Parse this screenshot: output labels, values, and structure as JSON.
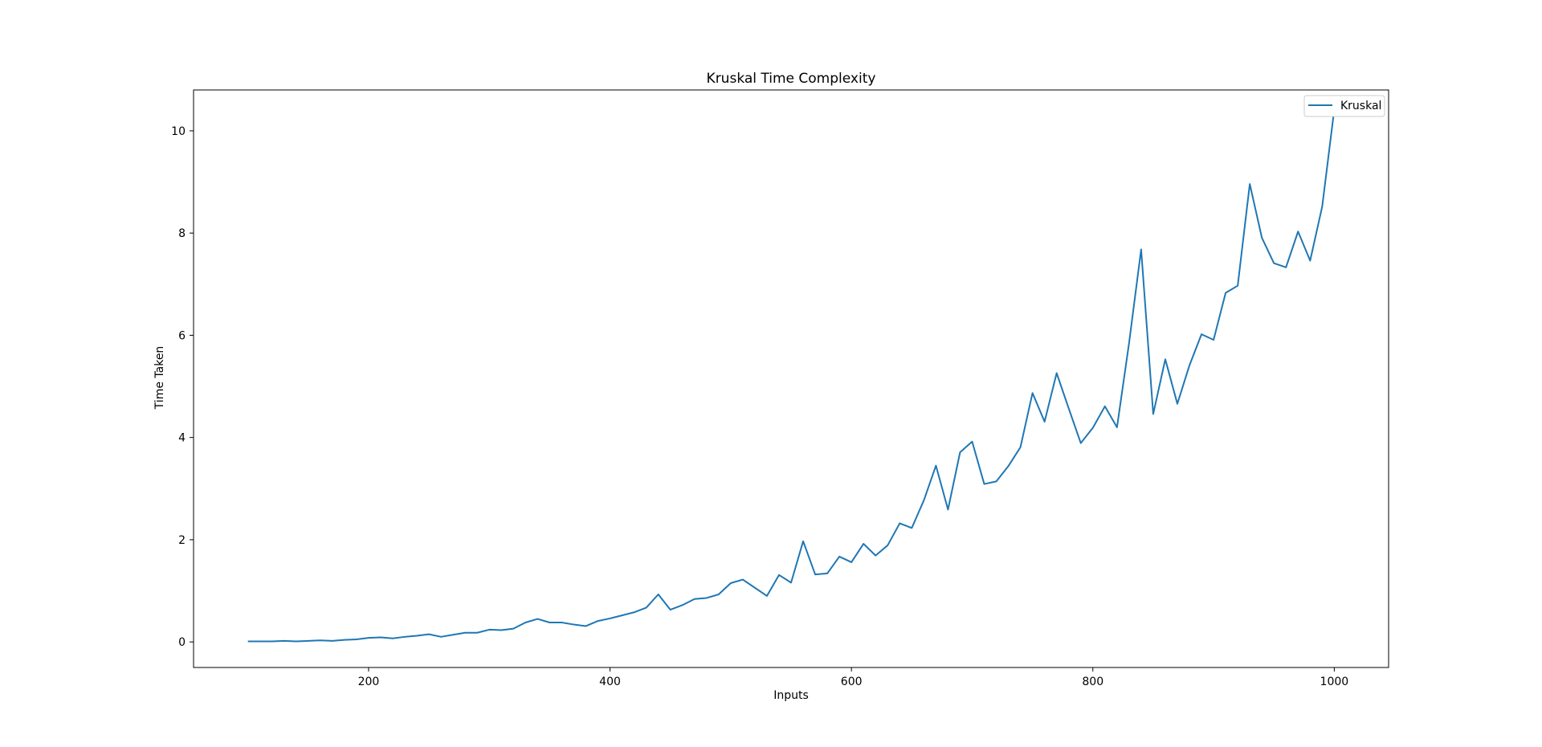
{
  "chart_data": {
    "type": "line",
    "title": "Kruskal Time Complexity",
    "xlabel": "Inputs",
    "ylabel": "Time Taken",
    "xlim": [
      55,
      1045
    ],
    "ylim": [
      -0.5,
      10.8
    ],
    "xticks": [
      200,
      400,
      600,
      800,
      1000
    ],
    "yticks": [
      0,
      2,
      4,
      6,
      8,
      10
    ],
    "grid": false,
    "legend_position": "upper right",
    "series": [
      {
        "name": "Kruskal",
        "color": "#1f77b4",
        "x": [
          100,
          110,
          120,
          130,
          140,
          150,
          160,
          170,
          180,
          190,
          200,
          210,
          220,
          230,
          240,
          250,
          260,
          270,
          280,
          290,
          300,
          310,
          320,
          330,
          340,
          350,
          360,
          370,
          380,
          390,
          400,
          410,
          420,
          430,
          440,
          450,
          460,
          470,
          480,
          490,
          500,
          510,
          520,
          530,
          540,
          550,
          560,
          570,
          580,
          590,
          600,
          610,
          620,
          630,
          640,
          650,
          660,
          670,
          680,
          690,
          700,
          710,
          720,
          730,
          740,
          750,
          760,
          770,
          780,
          790,
          800,
          810,
          820,
          830,
          840,
          850,
          860,
          870,
          880,
          890,
          900,
          910,
          920,
          930,
          940,
          950,
          960,
          970,
          980,
          990,
          1000
        ],
        "y": [
          0.01,
          0.01,
          0.01,
          0.02,
          0.01,
          0.02,
          0.03,
          0.02,
          0.04,
          0.05,
          0.08,
          0.09,
          0.07,
          0.1,
          0.12,
          0.15,
          0.1,
          0.14,
          0.18,
          0.18,
          0.24,
          0.23,
          0.26,
          0.38,
          0.45,
          0.38,
          0.38,
          0.34,
          0.31,
          0.41,
          0.46,
          0.52,
          0.58,
          0.67,
          0.93,
          0.63,
          0.72,
          0.84,
          0.86,
          0.93,
          1.15,
          1.22,
          1.06,
          0.9,
          1.31,
          1.16,
          1.97,
          1.32,
          1.34,
          1.67,
          1.56,
          1.92,
          1.69,
          1.89,
          2.32,
          2.23,
          2.77,
          3.45,
          2.59,
          3.71,
          3.92,
          3.09,
          3.14,
          3.44,
          3.81,
          4.87,
          4.31,
          5.26,
          4.57,
          3.89,
          4.19,
          4.61,
          4.2,
          5.85,
          7.68,
          4.46,
          5.53,
          4.66,
          5.41,
          6.02,
          5.91,
          6.83,
          6.97,
          8.96,
          7.91,
          7.41,
          7.33,
          8.03,
          7.46,
          8.52,
          10.42
        ]
      }
    ]
  }
}
